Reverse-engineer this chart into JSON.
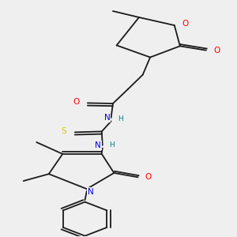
{
  "background_color": "#efefef",
  "bond_color": "#1a1a1a",
  "atom_colors": {
    "O": "#ff0000",
    "N": "#0000ee",
    "S": "#cccc00",
    "H_teal": "#008080",
    "C": "#1a1a1a"
  }
}
